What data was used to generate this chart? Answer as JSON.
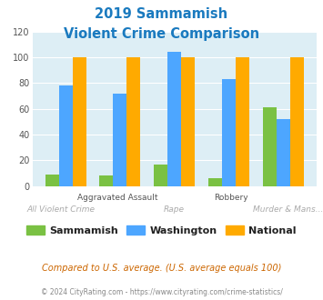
{
  "title_line1": "2019 Sammamish",
  "title_line2": "Violent Crime Comparison",
  "title_color": "#1a7abf",
  "categories": [
    "All Violent Crime",
    "Aggravated Assault",
    "Rape",
    "Robbery",
    "Murder & Mans..."
  ],
  "sammamish": [
    9,
    8,
    17,
    6,
    61
  ],
  "washington": [
    78,
    72,
    104,
    83,
    52
  ],
  "national": [
    100,
    100,
    100,
    100,
    100
  ],
  "sammamish_color": "#7ac143",
  "washington_color": "#4da6ff",
  "national_color": "#ffaa00",
  "ylim": [
    0,
    120
  ],
  "yticks": [
    0,
    20,
    40,
    60,
    80,
    100,
    120
  ],
  "plot_bg": "#ddeef5",
  "legend_labels": [
    "Sammamish",
    "Washington",
    "National"
  ],
  "footnote1": "Compared to U.S. average. (U.S. average equals 100)",
  "footnote2": "© 2024 CityRating.com - https://www.cityrating.com/crime-statistics/",
  "footnote1_color": "#cc6600",
  "footnote2_color": "#888888",
  "bar_width": 0.25
}
